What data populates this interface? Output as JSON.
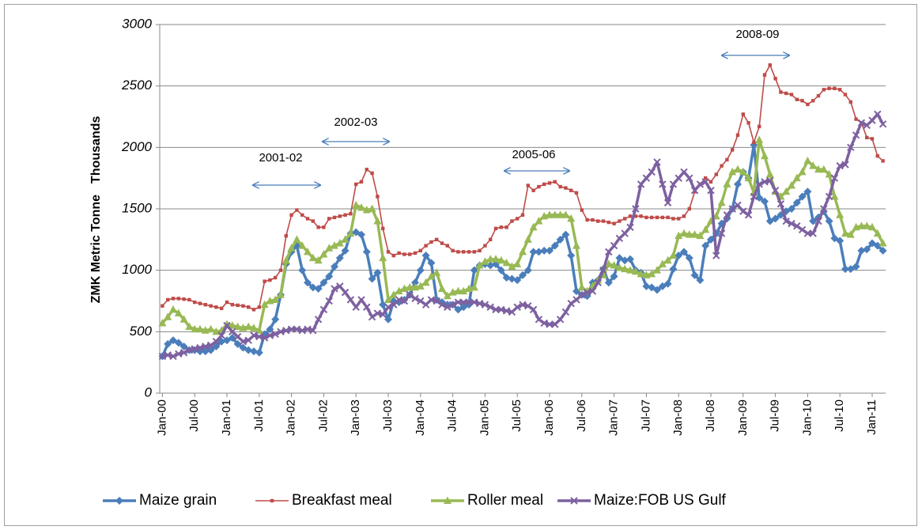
{
  "chart_data": {
    "type": "line",
    "y_label": "ZMK Metric Tonne",
    "y_units": "Thousands",
    "ylim": [
      0,
      3000
    ],
    "yticks": [
      0,
      500,
      1000,
      1500,
      2000,
      2500,
      3000
    ],
    "grid": true,
    "legend": "bottom",
    "annotations": [
      "2001-02",
      "2002-03",
      "2005-06",
      "2008-09"
    ],
    "categories": [
      "Jan-00",
      null,
      null,
      null,
      null,
      null,
      "Jul-00",
      null,
      null,
      null,
      null,
      null,
      "Jan-01",
      null,
      null,
      null,
      null,
      null,
      "Jul-01",
      null,
      null,
      null,
      null,
      null,
      "Jan-02",
      null,
      null,
      null,
      null,
      null,
      "Jul-02",
      null,
      null,
      null,
      null,
      null,
      "Jan-03",
      null,
      null,
      null,
      null,
      null,
      "Jul-03",
      null,
      null,
      null,
      null,
      null,
      "Jan-04",
      null,
      null,
      null,
      null,
      null,
      "Jul-04",
      null,
      null,
      null,
      null,
      null,
      "Jan-05",
      null,
      null,
      null,
      null,
      null,
      "Jul-05",
      null,
      null,
      null,
      null,
      null,
      "Jan-06",
      null,
      null,
      null,
      null,
      null,
      "Jul-06",
      null,
      null,
      null,
      null,
      null,
      "Jan-07",
      null,
      null,
      null,
      null,
      null,
      "Jul-07",
      null,
      null,
      null,
      null,
      null,
      "Jan-08",
      null,
      null,
      null,
      null,
      null,
      "Jul-08",
      null,
      null,
      null,
      null,
      null,
      "Jan-09",
      null,
      null,
      null,
      null,
      null,
      "Jul-09",
      null,
      null,
      null,
      null,
      null,
      "Jan-10",
      null,
      null,
      null,
      null,
      null,
      "Jul-10",
      null,
      null,
      null,
      null,
      null,
      "Jan-11",
      null,
      null
    ],
    "series": [
      {
        "name": "Maize grain",
        "color": "#4a7ebb",
        "marker": "diamond",
        "values": [
          300,
          400,
          430,
          410,
          380,
          350,
          350,
          340,
          340,
          350,
          380,
          420,
          430,
          450,
          400,
          370,
          350,
          340,
          330,
          480,
          520,
          600,
          800,
          1050,
          1150,
          1200,
          1000,
          900,
          860,
          850,
          900,
          950,
          1030,
          1100,
          1160,
          1300,
          1310,
          1290,
          1150,
          930,
          980,
          720,
          600,
          750,
          740,
          760,
          800,
          900,
          1000,
          1120,
          1060,
          760,
          740,
          720,
          720,
          680,
          700,
          720,
          1000,
          1040,
          1050,
          1040,
          1050,
          1000,
          940,
          930,
          920,
          960,
          1000,
          1150,
          1150,
          1160,
          1160,
          1200,
          1250,
          1290,
          1120,
          830,
          800,
          790,
          900,
          920,
          1010,
          900,
          950,
          1100,
          1080,
          1090,
          1000,
          980,
          870,
          860,
          840,
          870,
          890,
          1010,
          1120,
          1150,
          1100,
          960,
          920,
          1200,
          1250,
          1300,
          1380,
          1420,
          1500,
          1700,
          1800,
          1750,
          2020,
          1590,
          1560,
          1400,
          1420,
          1450,
          1480,
          1500,
          1550,
          1600,
          1640,
          1400,
          1430,
          1480,
          1400,
          1260,
          1240,
          1010,
          1010,
          1030,
          1160,
          1170,
          1220,
          1200,
          1160
        ]
      },
      {
        "name": "Breakfast meal",
        "color": "#be4b48",
        "marker": "square",
        "values": [
          710,
          760,
          770,
          770,
          765,
          760,
          740,
          730,
          720,
          710,
          700,
          690,
          740,
          720,
          715,
          710,
          700,
          680,
          700,
          910,
          920,
          940,
          1000,
          1280,
          1450,
          1490,
          1450,
          1420,
          1400,
          1350,
          1350,
          1420,
          1430,
          1440,
          1450,
          1460,
          1700,
          1720,
          1820,
          1790,
          1600,
          1340,
          1150,
          1120,
          1140,
          1130,
          1130,
          1140,
          1160,
          1200,
          1230,
          1250,
          1220,
          1200,
          1160,
          1150,
          1150,
          1150,
          1150,
          1160,
          1200,
          1250,
          1340,
          1350,
          1350,
          1400,
          1420,
          1450,
          1690,
          1650,
          1680,
          1700,
          1710,
          1720,
          1680,
          1670,
          1650,
          1630,
          1490,
          1410,
          1410,
          1400,
          1400,
          1390,
          1380,
          1400,
          1420,
          1440,
          1440,
          1440,
          1430,
          1430,
          1430,
          1430,
          1430,
          1420,
          1420,
          1440,
          1500,
          1640,
          1700,
          1750,
          1720,
          1780,
          1850,
          1900,
          1980,
          2100,
          2270,
          2200,
          2040,
          2170,
          2590,
          2670,
          2560,
          2450,
          2440,
          2430,
          2390,
          2380,
          2350,
          2380,
          2420,
          2470,
          2480,
          2480,
          2470,
          2430,
          2370,
          2230,
          2200,
          2080,
          2070,
          1930,
          1890
        ]
      },
      {
        "name": "Roller meal",
        "color": "#98b954",
        "marker": "triangle",
        "values": [
          570,
          620,
          680,
          650,
          600,
          540,
          520,
          520,
          510,
          520,
          500,
          510,
          560,
          550,
          540,
          530,
          540,
          530,
          510,
          720,
          750,
          760,
          800,
          1080,
          1180,
          1250,
          1200,
          1150,
          1100,
          1080,
          1130,
          1180,
          1200,
          1220,
          1250,
          1300,
          1530,
          1510,
          1490,
          1500,
          1400,
          1100,
          760,
          800,
          830,
          850,
          860,
          860,
          870,
          900,
          950,
          980,
          850,
          790,
          820,
          830,
          830,
          850,
          860,
          1040,
          1070,
          1090,
          1090,
          1080,
          1060,
          1030,
          1050,
          1150,
          1250,
          1350,
          1400,
          1440,
          1450,
          1450,
          1450,
          1450,
          1420,
          1200,
          860,
          830,
          870,
          920,
          960,
          1050,
          1040,
          1020,
          1010,
          1000,
          990,
          970,
          960,
          970,
          1000,
          1050,
          1080,
          1120,
          1280,
          1300,
          1290,
          1290,
          1280,
          1330,
          1400,
          1440,
          1550,
          1700,
          1800,
          1820,
          1800,
          1750,
          1630,
          2060,
          1930,
          1780,
          1640,
          1600,
          1640,
          1690,
          1750,
          1800,
          1890,
          1850,
          1820,
          1820,
          1780,
          1600,
          1450,
          1300,
          1290,
          1350,
          1360,
          1360,
          1350,
          1300,
          1220
        ]
      },
      {
        "name": "Maize:FOB US Gulf",
        "color": "#7d60a0",
        "marker": "x",
        "values": [
          300,
          310,
          300,
          320,
          330,
          350,
          360,
          370,
          380,
          390,
          420,
          470,
          550,
          500,
          460,
          420,
          430,
          470,
          460,
          450,
          470,
          480,
          500,
          510,
          520,
          520,
          510,
          520,
          510,
          600,
          680,
          750,
          850,
          870,
          820,
          760,
          700,
          760,
          700,
          620,
          650,
          640,
          700,
          720,
          760,
          750,
          800,
          770,
          750,
          720,
          760,
          750,
          720,
          700,
          720,
          740,
          740,
          740,
          740,
          730,
          720,
          700,
          680,
          680,
          670,
          660,
          700,
          720,
          710,
          680,
          600,
          570,
          560,
          560,
          600,
          660,
          730,
          760,
          800,
          820,
          830,
          900,
          1000,
          1150,
          1200,
          1260,
          1300,
          1350,
          1500,
          1700,
          1750,
          1800,
          1880,
          1700,
          1550,
          1700,
          1750,
          1800,
          1750,
          1650,
          1700,
          1720,
          1650,
          1120,
          1300,
          1450,
          1500,
          1530,
          1480,
          1450,
          1600,
          1700,
          1720,
          1730,
          1650,
          1540,
          1400,
          1380,
          1360,
          1330,
          1300,
          1300,
          1400,
          1500,
          1600,
          1750,
          1850,
          1860,
          2000,
          2100,
          2200,
          2180,
          2220,
          2270,
          2190
        ]
      }
    ]
  }
}
